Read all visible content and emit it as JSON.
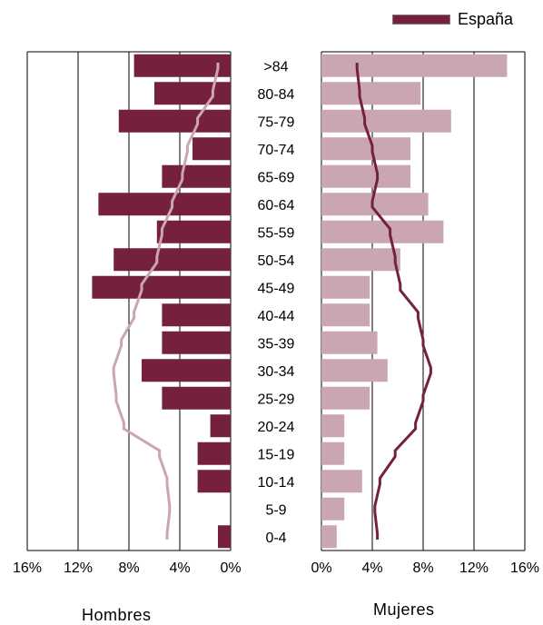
{
  "chart_data": {
    "type": "bar",
    "subtype": "population-pyramid",
    "categories": [
      ">84",
      "80-84",
      "75-79",
      "70-74",
      "65-69",
      "60-64",
      "55-59",
      "50-54",
      "45-49",
      "40-44",
      "35-39",
      "30-34",
      "25-29",
      "20-24",
      "15-19",
      "10-14",
      "5-9",
      "0-4"
    ],
    "panels": {
      "left": {
        "label": "Hombres",
        "bar_color": "#76213c",
        "line_color": "#c9a6b1",
        "xlim": [
          0,
          16
        ],
        "ticks": [
          "16%",
          "12%",
          "8%",
          "4%",
          "0%"
        ],
        "tick_values": [
          16,
          12,
          8,
          4,
          0
        ],
        "bars": [
          7.6,
          6.0,
          8.8,
          3.0,
          5.4,
          10.4,
          5.8,
          9.2,
          10.9,
          5.4,
          5.4,
          7.0,
          5.4,
          1.6,
          2.6,
          2.6,
          0,
          1.0
        ],
        "line": [
          1.0,
          1.4,
          2.6,
          3.4,
          3.8,
          4.6,
          5.4,
          5.8,
          7.0,
          7.6,
          8.6,
          9.2,
          9.0,
          8.4,
          5.6,
          5.0,
          4.8,
          5.0
        ]
      },
      "right": {
        "label": "Mujeres",
        "bar_color": "#c9a6b1",
        "line_color": "#76213c",
        "xlim": [
          0,
          16
        ],
        "ticks": [
          "0%",
          "4%",
          "8%",
          "12%",
          "16%"
        ],
        "tick_values": [
          0,
          4,
          8,
          12,
          16
        ],
        "bars": [
          14.6,
          7.8,
          10.2,
          7.0,
          7.0,
          8.4,
          9.6,
          6.2,
          3.8,
          3.8,
          4.4,
          5.2,
          3.8,
          1.8,
          1.8,
          3.2,
          1.8,
          1.2
        ],
        "line": [
          2.8,
          3.0,
          3.4,
          4.0,
          4.4,
          4.0,
          5.4,
          5.8,
          6.2,
          7.6,
          8.0,
          8.6,
          8.0,
          7.4,
          5.8,
          4.6,
          4.2,
          4.4
        ]
      }
    },
    "legend": {
      "label": "España",
      "position": "top-right"
    },
    "grid": true
  }
}
